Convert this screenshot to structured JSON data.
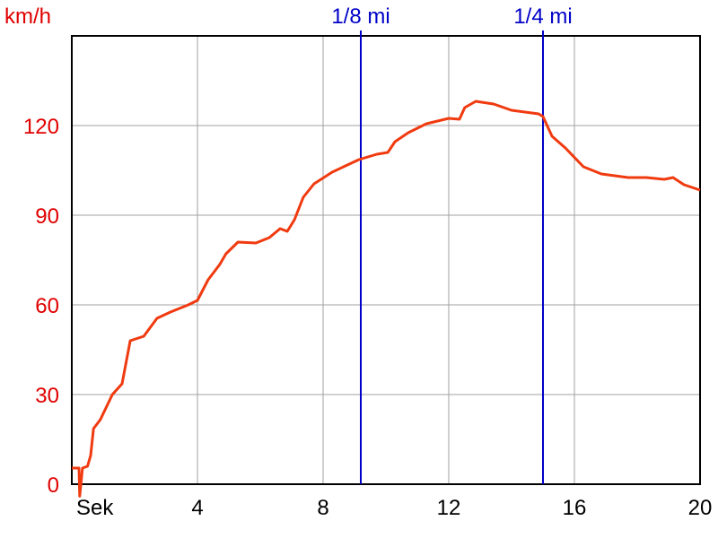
{
  "chart_data": {
    "type": "line",
    "y_label": "km/h",
    "x": [
      0,
      0.23,
      0.25,
      0.34,
      0.5,
      0.6,
      0.69,
      0.91,
      1.29,
      1.6,
      1.86,
      2.29,
      2.71,
      3.14,
      3.71,
      4,
      4.34,
      4.71,
      4.91,
      5.29,
      5.86,
      6.29,
      6.63,
      6.86,
      7.09,
      7.37,
      7.71,
      8.29,
      8.71,
      9.14,
      9.71,
      10.06,
      10.29,
      10.71,
      11.29,
      12,
      12.34,
      12.51,
      12.86,
      13.43,
      14,
      14.86,
      15,
      15.29,
      15.71,
      16.29,
      16.86,
      17.71,
      18.29,
      18.86,
      19.14,
      19.49,
      20
    ],
    "values": [
      5.4,
      5.4,
      -4,
      5.4,
      6,
      9.6,
      18.6,
      21.6,
      30,
      33.6,
      48,
      49.5,
      55.5,
      57.6,
      60,
      61.5,
      68.4,
      73.5,
      77.1,
      81,
      80.7,
      82.5,
      85.5,
      84.6,
      88.5,
      96,
      100.5,
      104.4,
      106.5,
      108.6,
      110.4,
      111,
      114.6,
      117.6,
      120.6,
      122.4,
      122.1,
      126,
      128.1,
      127.2,
      125.1,
      123.9,
      123,
      116.4,
      112.5,
      106.2,
      103.8,
      102.6,
      102.6,
      102,
      102.6,
      100.2,
      98.4
    ],
    "color": "#f03a10",
    "xlim": [
      0,
      20
    ],
    "ylim": [
      0,
      150
    ],
    "xticks": [
      {
        "value": 0,
        "label": "Sek"
      },
      4,
      8,
      12,
      16,
      20
    ],
    "yticks": [
      0,
      30,
      60,
      90,
      120
    ],
    "grid": true,
    "vlines": [
      {
        "label": "1/8 mi",
        "x": 9.2,
        "color": "#0000c8"
      },
      {
        "label": "1/4 mi",
        "x": 15.0,
        "color": "#0000c8"
      }
    ]
  }
}
